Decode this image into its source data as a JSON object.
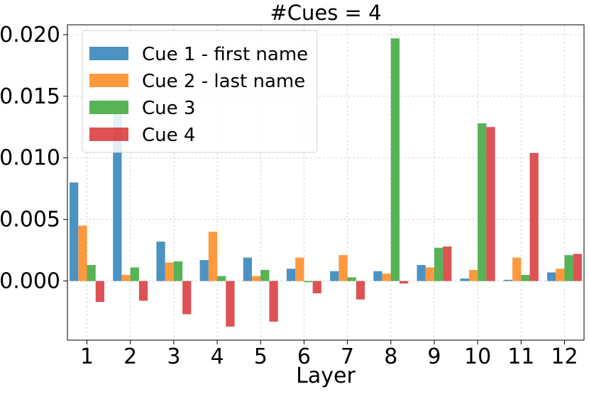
{
  "chart_data": {
    "type": "bar",
    "title": "#Cues = 4",
    "xlabel": "Layer",
    "ylabel": "",
    "categories": [
      "1",
      "2",
      "3",
      "4",
      "5",
      "6",
      "7",
      "8",
      "9",
      "10",
      "11",
      "12"
    ],
    "ylim": [
      -0.0048,
      0.0208
    ],
    "yticks": [
      0.0,
      0.005,
      0.01,
      0.015,
      0.02
    ],
    "ytick_labels": [
      "0.000",
      "0.005",
      "0.010",
      "0.015",
      "0.020"
    ],
    "grid": true,
    "legend_position": "upper-left",
    "series": [
      {
        "name": "Cue 1 - first name",
        "color": "#1f77b4",
        "values": [
          0.008,
          0.0136,
          0.0032,
          0.0017,
          0.0019,
          0.001,
          0.0008,
          0.0008,
          0.0013,
          0.0002,
          0.0001,
          0.0007
        ]
      },
      {
        "name": "Cue 2 - last name",
        "color": "#ff7f0e",
        "values": [
          0.0045,
          0.0005,
          0.0015,
          0.004,
          0.0004,
          0.0019,
          0.0021,
          0.0006,
          0.0011,
          0.0009,
          0.0019,
          0.001
        ]
      },
      {
        "name": "Cue 3",
        "color": "#2ca02c",
        "values": [
          0.0013,
          0.0011,
          0.0016,
          0.0004,
          0.0009,
          -0.0001,
          0.0003,
          0.0197,
          0.0027,
          0.0128,
          0.0005,
          0.0021
        ]
      },
      {
        "name": "Cue 4",
        "color": "#d62728",
        "values": [
          -0.0017,
          -0.0016,
          -0.0027,
          -0.0037,
          -0.0033,
          -0.001,
          -0.0015,
          -0.0002,
          0.0028,
          0.0125,
          0.0104,
          0.0022
        ]
      }
    ]
  }
}
